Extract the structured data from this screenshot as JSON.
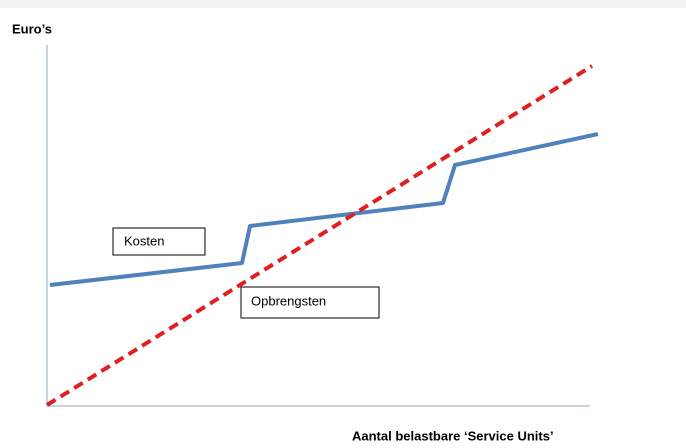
{
  "y_axis_label": "Euro’s",
  "x_axis_label": "Aantal belastbare ‘Service Units’",
  "labels": {
    "costs": "Kosten",
    "revenue": "Opbrengsten"
  }
}
